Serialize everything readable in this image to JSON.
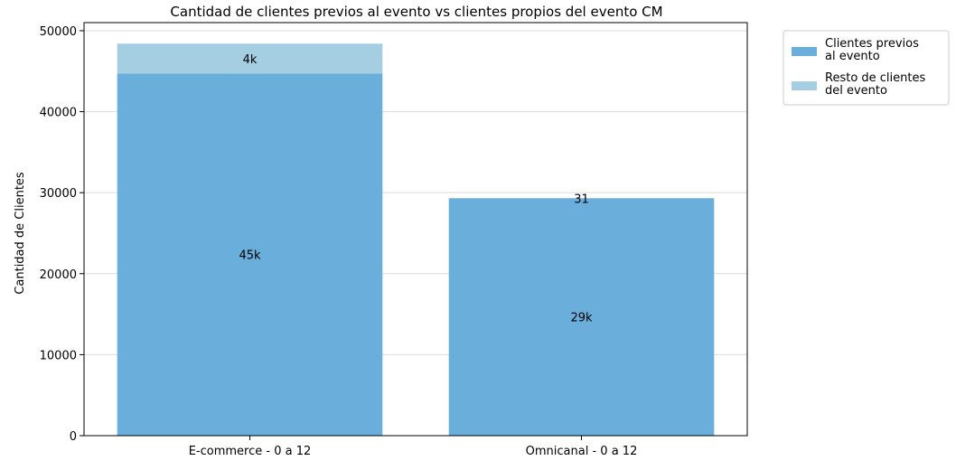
{
  "chart_data": {
    "type": "bar",
    "stacked": true,
    "title": "Cantidad de clientes previos al evento vs clientes propios del evento CM",
    "xlabel": "",
    "ylabel": "Cantidad de Clientes",
    "categories": [
      "E-commerce - 0 a 12",
      "Omnicanal - 0 a 12"
    ],
    "ylim": [
      0,
      50000
    ],
    "yticks": [
      0,
      10000,
      20000,
      30000,
      40000,
      50000
    ],
    "ytick_labels": [
      "0",
      "10000",
      "20000",
      "30000",
      "40000",
      "50000"
    ],
    "grid": "horizontal",
    "legend_position": "outside-top-right",
    "series": [
      {
        "name": "Clientes previos al evento",
        "legend_lines": [
          "Clientes previos",
          "al evento"
        ],
        "color": "#6aaedb",
        "values": [
          44700,
          29300
        ],
        "labels": [
          "45k",
          "29k"
        ]
      },
      {
        "name": "Resto de clientes del evento",
        "legend_lines": [
          "Resto de clientes",
          "del evento"
        ],
        "color": "#a6cee3",
        "values": [
          3700,
          31
        ],
        "labels": [
          "4k",
          "31"
        ]
      }
    ]
  }
}
